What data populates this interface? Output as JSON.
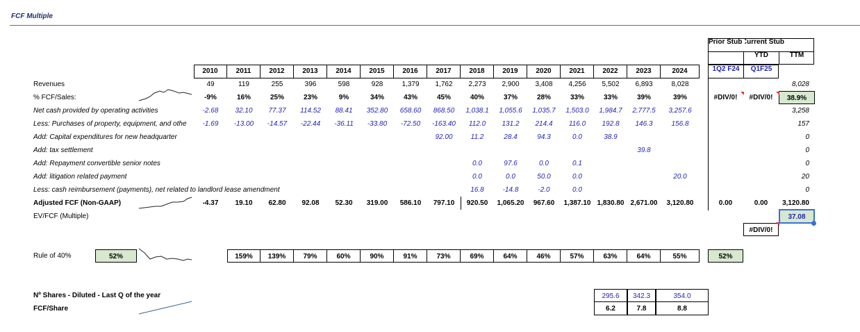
{
  "title": "FCF Multiple",
  "headers": {
    "prior_stub": "Prior Stub",
    "current_stub": "Current Stub",
    "ytd": "YTD",
    "ttm": "TTM",
    "years": [
      "2010",
      "2011",
      "2012",
      "2013",
      "2014",
      "2015",
      "2016",
      "2017",
      "2018",
      "2019",
      "2020",
      "2021",
      "2022",
      "2023",
      "2024"
    ],
    "q_prior": "1Q2 F24",
    "q_current": "Q1F25"
  },
  "rows": {
    "revenues": {
      "label": "Revenues",
      "values": [
        "49",
        "119",
        "255",
        "396",
        "598",
        "928",
        "1,379",
        "1,762",
        "2,273",
        "2,900",
        "3,408",
        "4,256",
        "5,502",
        "6,893",
        "8,028"
      ],
      "ttm": "8,028"
    },
    "fcf_sales": {
      "label": "% FCF/Sales:",
      "values": [
        "-9%",
        "16%",
        "25%",
        "23%",
        "9%",
        "34%",
        "43%",
        "45%",
        "40%",
        "37%",
        "28%",
        "33%",
        "33%",
        "39%",
        "39%"
      ],
      "prior": "#DIV/0!",
      "current": "#DIV/0!",
      "ttm": "38.9%"
    },
    "ocf": {
      "label": "Net cash provided by operating activities",
      "values": [
        "-2.68",
        "32.10",
        "77.37",
        "114.52",
        "88.41",
        "352.80",
        "658.60",
        "868.50",
        "1,038.1",
        "1,055.6",
        "1,035.7",
        "1,503.0",
        "1,984.7",
        "2,777.5",
        "3,257.6"
      ],
      "ttm": "3,258"
    },
    "capex": {
      "label": "Less: Purchases of property, equipment, and othe",
      "values": [
        "-1.69",
        "-13.00",
        "-14.57",
        "-22.44",
        "-36.11",
        "-33.80",
        "-72.50",
        "-163.40",
        "112.0",
        "131.2",
        "214.4",
        "116.0",
        "192.8",
        "146.3",
        "156.8"
      ],
      "ttm": "157"
    },
    "hq": {
      "label": "Add: Capital expenditures for new headquarter",
      "values": [
        "",
        "",
        "",
        "",
        "",
        "",
        "",
        "92.00",
        "11.2",
        "28.4",
        "94.3",
        "0.0",
        "38.9",
        "",
        ""
      ],
      "ttm": "0"
    },
    "tax": {
      "label": "Add: tax settlement",
      "values": [
        "",
        "",
        "",
        "",
        "",
        "",
        "",
        "",
        "",
        "",
        "",
        "",
        "",
        "39.8",
        ""
      ],
      "ttm": "0"
    },
    "notes": {
      "label": "Add: Repayment convertible senior notes",
      "values": [
        "",
        "",
        "",
        "",
        "",
        "",
        "",
        "",
        "0.0",
        "97.6",
        "0.0",
        "0.1",
        "",
        "",
        ""
      ],
      "ttm": "0"
    },
    "litigation": {
      "label": "Add: litigation related payment",
      "values": [
        "",
        "",
        "",
        "",
        "",
        "",
        "",
        "",
        "0.0",
        "0.0",
        "50.0",
        "0.0",
        "",
        "",
        "20.0"
      ],
      "ttm": "20"
    },
    "lease": {
      "label": "Less: cash reimbursement (payments), net related to landlord lease amendment",
      "values": [
        "",
        "",
        "",
        "",
        "",
        "",
        "",
        "",
        "16.8",
        "-14.8",
        "-2.0",
        "0.0",
        "",
        "",
        ""
      ],
      "ttm": "0"
    },
    "adj_fcf": {
      "label": "Adjusted FCF (Non-GAAP)",
      "values": [
        "-4.37",
        "19.10",
        "62.80",
        "92.08",
        "52.30",
        "319.00",
        "586.10",
        "797.10",
        "920.50",
        "1,065.20",
        "967.60",
        "1,387.10",
        "1,830.80",
        "2,671.00",
        "3,120.80"
      ],
      "prior": "0.00",
      "current": "0.00",
      "ttm": "3,120.80"
    },
    "ev_fcf": {
      "label": "EV/FCF (Multiple)",
      "ttm": "37.08",
      "current_below": "#DIV/0!"
    },
    "rule40": {
      "label": "Rule of 40%",
      "summary": "52%",
      "values": [
        "",
        "159%",
        "139%",
        "79%",
        "60%",
        "90%",
        "91%",
        "73%",
        "69%",
        "64%",
        "46%",
        "57%",
        "63%",
        "64%",
        "55%"
      ],
      "prior": "52%"
    },
    "shares": {
      "label": "Nº Shares - Diluted - Last Q of the year",
      "values": [
        "295.6",
        "342.3",
        "354.0"
      ]
    },
    "fcf_share": {
      "label": "FCF/Share",
      "values": [
        "6.2",
        "7.8",
        "8.8"
      ]
    }
  }
}
